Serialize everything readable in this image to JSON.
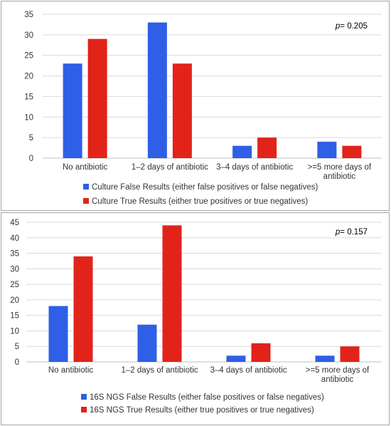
{
  "chart_data": [
    {
      "type": "bar",
      "categories": [
        [
          "No antibiotic"
        ],
        [
          "1–2 days of antibiotic"
        ],
        [
          "3–4 days of antibiotic"
        ],
        [
          ">=5 more days of",
          "antibiotic"
        ]
      ],
      "series": [
        {
          "name": "Culture False Results (either false positives or false negatives)",
          "color": "#2f5fe6",
          "values": [
            23,
            33,
            3,
            4
          ]
        },
        {
          "name": "Culture True Results (either true positives or true negatives)",
          "color": "#e2231a",
          "values": [
            29,
            23,
            5,
            3
          ]
        }
      ],
      "ylim": [
        0,
        35
      ],
      "yticks": [
        0,
        5,
        10,
        15,
        20,
        25,
        30,
        35
      ],
      "annotation": {
        "italic": "p",
        "text": "= 0.205"
      },
      "legend_position": "bottom",
      "grid": true
    },
    {
      "type": "bar",
      "categories": [
        [
          "No antibiotic"
        ],
        [
          "1–2 days of antibiotic"
        ],
        [
          "3–4 days of antibiotic"
        ],
        [
          ">=5 more days of",
          "antibiotic"
        ]
      ],
      "series": [
        {
          "name": "16S NGS False Results (either false positives or false negatives)",
          "color": "#2f5fe6",
          "values": [
            18,
            12,
            2,
            2
          ]
        },
        {
          "name": "16S NGS True Results (either true positives or true negatives)",
          "color": "#e2231a",
          "values": [
            34,
            44,
            6,
            5
          ]
        }
      ],
      "ylim": [
        0,
        45
      ],
      "yticks": [
        0,
        5,
        10,
        15,
        20,
        25,
        30,
        35,
        40,
        45
      ],
      "annotation": {
        "italic": "p",
        "text": "= 0.157"
      },
      "legend_position": "bottom",
      "grid": true
    }
  ]
}
